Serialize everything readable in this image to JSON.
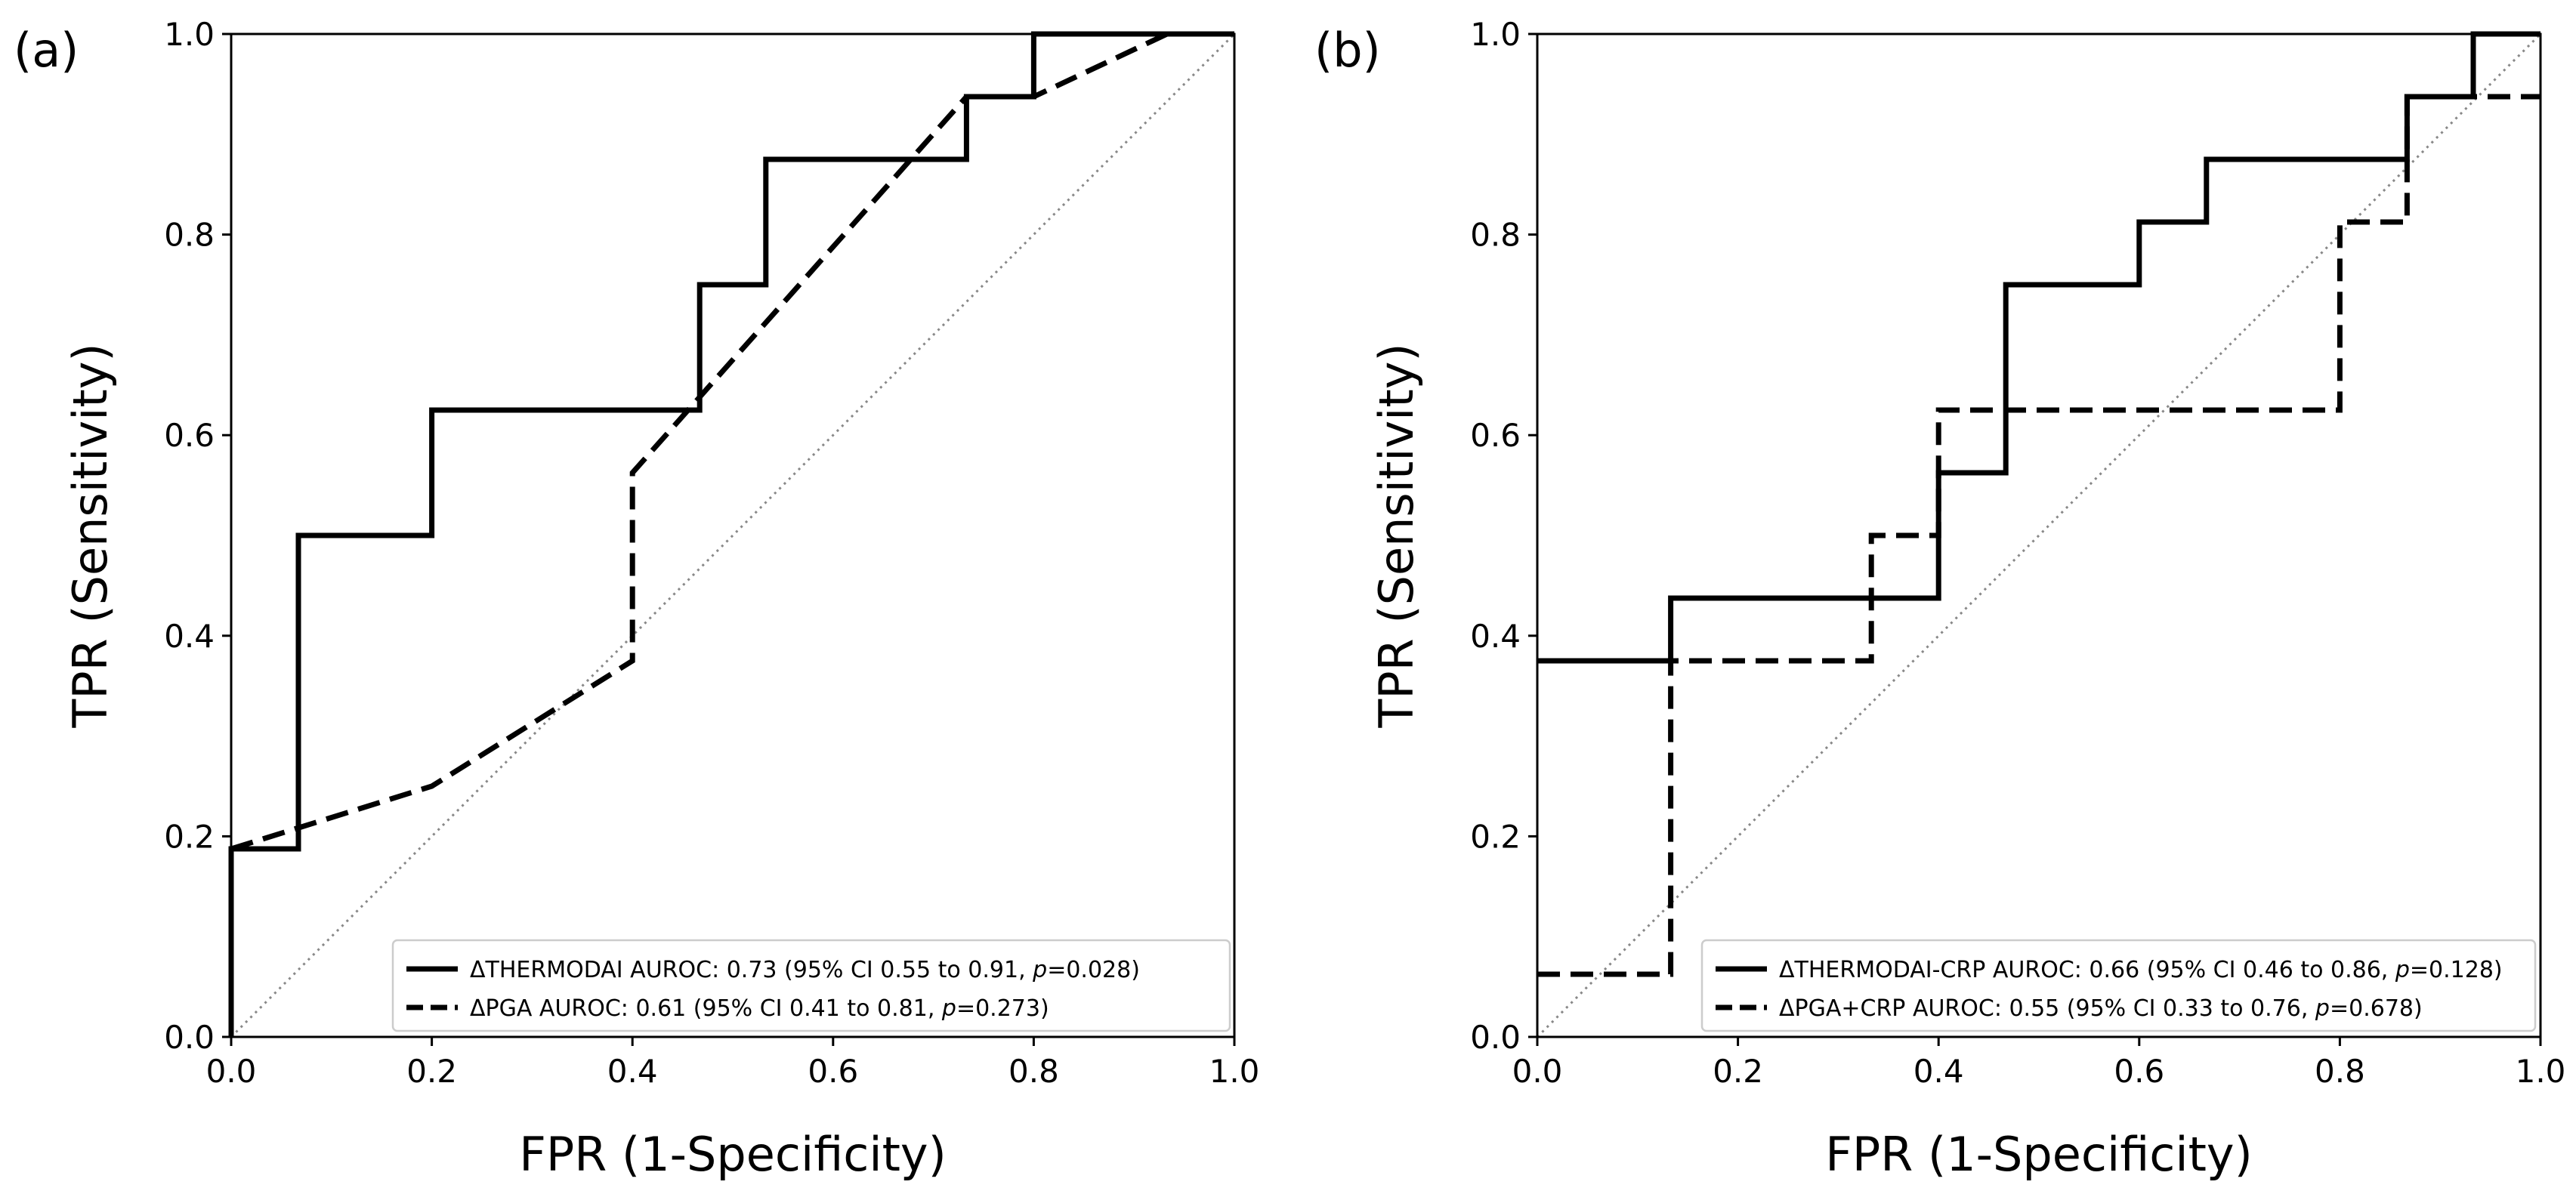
{
  "chart_data": [
    {
      "type": "line",
      "panel_label": "(a)",
      "xlabel": "FPR (1-Specificity)",
      "ylabel": "TPR (Sensitivity)",
      "xlim": [
        0,
        1
      ],
      "ylim": [
        0,
        1
      ],
      "xticks": [
        "0.0",
        "0.2",
        "0.4",
        "0.6",
        "0.8",
        "1.0"
      ],
      "yticks": [
        "0.0",
        "0.2",
        "0.4",
        "0.6",
        "0.8",
        "1.0"
      ],
      "legend_position": "lower-right",
      "diagonal": true,
      "series": [
        {
          "name": "ΔTHERMODAI AUROC: 0.73 (95% CI 0.55 to 0.91, ",
          "p_label": "p",
          "p_value": "=0.028)",
          "style": "solid",
          "x": [
            0,
            0,
            0.067,
            0.067,
            0.2,
            0.2,
            0.467,
            0.467,
            0.533,
            0.533,
            0.733,
            0.733,
            0.8,
            0.8,
            1.0
          ],
          "y": [
            0,
            0.1875,
            0.1875,
            0.5,
            0.5,
            0.625,
            0.625,
            0.75,
            0.75,
            0.875,
            0.875,
            0.9375,
            0.9375,
            1.0,
            1.0
          ]
        },
        {
          "name": "ΔPGA AUROC: 0.61 (95% CI 0.41 to 0.81, ",
          "p_label": "p",
          "p_value": "=0.273)",
          "style": "dashed",
          "x": [
            0,
            0.2,
            0.4,
            0.4,
            0.733,
            0.8,
            0.933,
            1.0
          ],
          "y": [
            0.1875,
            0.25,
            0.375,
            0.5625,
            0.9375,
            0.9375,
            1.0,
            1.0
          ]
        }
      ]
    },
    {
      "type": "line",
      "panel_label": "(b)",
      "xlabel": "FPR (1-Specificity)",
      "ylabel": "TPR (Sensitivity)",
      "xlim": [
        0,
        1
      ],
      "ylim": [
        0,
        1
      ],
      "xticks": [
        "0.0",
        "0.2",
        "0.4",
        "0.6",
        "0.8",
        "1.0"
      ],
      "yticks": [
        "0.0",
        "0.2",
        "0.4",
        "0.6",
        "0.8",
        "1.0"
      ],
      "legend_position": "lower-right",
      "diagonal": true,
      "series": [
        {
          "name": "ΔTHERMODAI-CRP AUROC: 0.66 (95% CI 0.46 to 0.86, ",
          "p_label": "p",
          "p_value": "=0.128)",
          "style": "solid",
          "x": [
            0,
            0.133,
            0.133,
            0.4,
            0.4,
            0.467,
            0.467,
            0.6,
            0.6,
            0.667,
            0.667,
            0.867,
            0.867,
            0.933,
            0.933,
            1.0,
            1.0
          ],
          "y": [
            0.375,
            0.375,
            0.4375,
            0.4375,
            0.5625,
            0.5625,
            0.75,
            0.75,
            0.8125,
            0.8125,
            0.875,
            0.875,
            0.9375,
            0.9375,
            1.0,
            1.0,
            1.0
          ]
        },
        {
          "name": "ΔPGA+CRP AUROC: 0.55 (95% CI 0.33 to 0.76, ",
          "p_label": "p",
          "p_value": "=0.678)",
          "style": "dashed",
          "x": [
            0,
            0.133,
            0.133,
            0.333,
            0.333,
            0.4,
            0.4,
            0.8,
            0.8,
            0.867,
            0.867,
            1.0
          ],
          "y": [
            0.0625,
            0.0625,
            0.375,
            0.375,
            0.5,
            0.5,
            0.625,
            0.625,
            0.8125,
            0.8125,
            0.9375,
            0.9375
          ]
        }
      ]
    }
  ]
}
